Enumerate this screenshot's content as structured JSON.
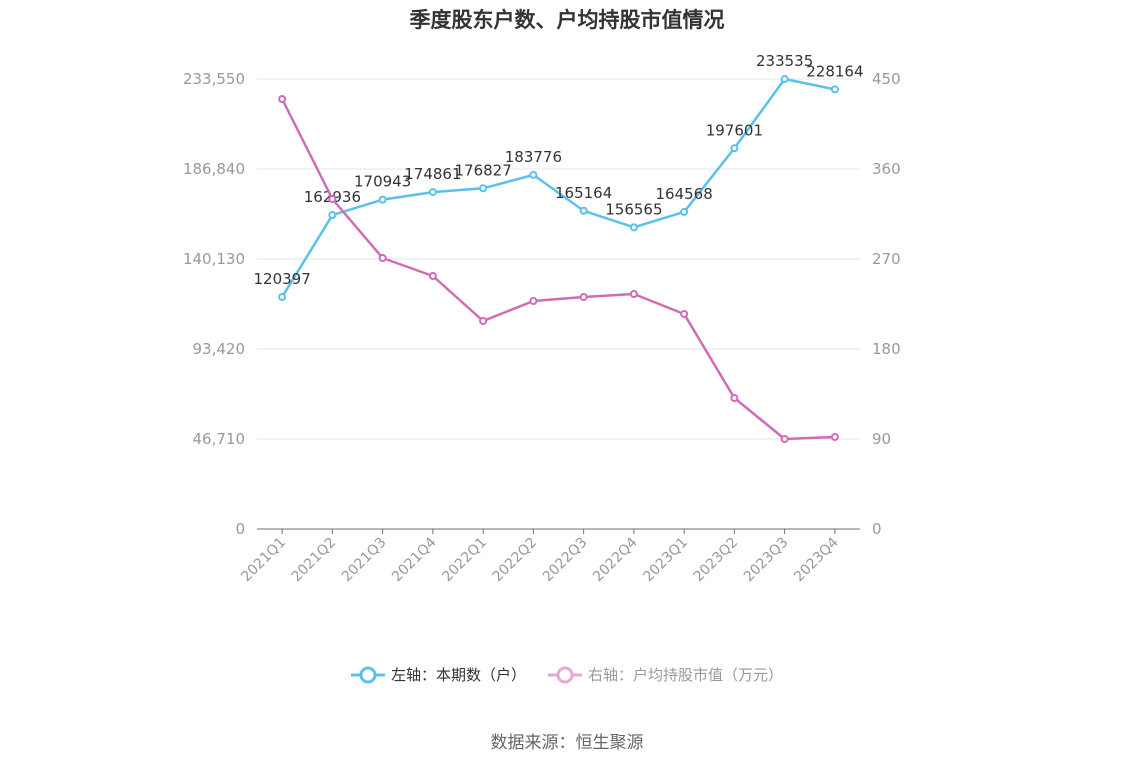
{
  "chart_data": {
    "type": "line",
    "title": "季度股东户数、户均持股市值情况",
    "categories": [
      "2021Q1",
      "2021Q2",
      "2021Q3",
      "2021Q4",
      "2022Q1",
      "2022Q2",
      "2022Q3",
      "2022Q4",
      "2023Q1",
      "2023Q2",
      "2023Q3",
      "2023Q4"
    ],
    "left_axis": {
      "ticks": [
        "0",
        "46,710",
        "93,420",
        "140,130",
        "186,840",
        "233,550"
      ],
      "ylim": [
        0,
        233550
      ]
    },
    "right_axis": {
      "ticks": [
        "0",
        "90",
        "180",
        "270",
        "360",
        "450"
      ],
      "ylim": [
        0,
        450
      ]
    },
    "grid": true,
    "legend_position": "bottom",
    "series": [
      {
        "name": "左轴：本期数（户）",
        "axis": "left",
        "color": "#5bc0eb",
        "values": [
          120397,
          162936,
          170943,
          174861,
          176827,
          183776,
          165164,
          156565,
          164568,
          197601,
          233535,
          228164
        ],
        "labels": [
          "120397",
          "162936",
          "170943",
          "174861",
          "176827",
          "183776",
          "165164",
          "156565",
          "164568",
          "197601",
          "233535",
          "228164"
        ]
      },
      {
        "name": "右轴：户均持股市值（万元）",
        "axis": "right",
        "color": "#d16bb5",
        "legend_color": "#e9a8d4",
        "values": [
          430,
          330,
          271,
          253,
          208,
          228,
          232,
          235,
          215,
          131,
          90,
          92
        ]
      }
    ]
  },
  "source": "数据来源：恒生聚源"
}
